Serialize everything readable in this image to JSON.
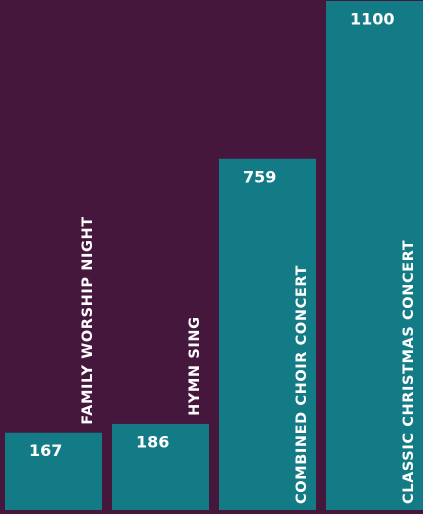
{
  "chart_data": {
    "type": "bar",
    "categories": [
      "FAMILY WORSHIP NIGHT",
      "HYMN SING",
      "COMBINED CHOIR CONCERT",
      "CLASSIC CHRISTMAS CONCERT"
    ],
    "values": [
      167,
      186,
      759,
      1100
    ],
    "color": "#137b85",
    "ylim": [
      0,
      1100
    ]
  }
}
